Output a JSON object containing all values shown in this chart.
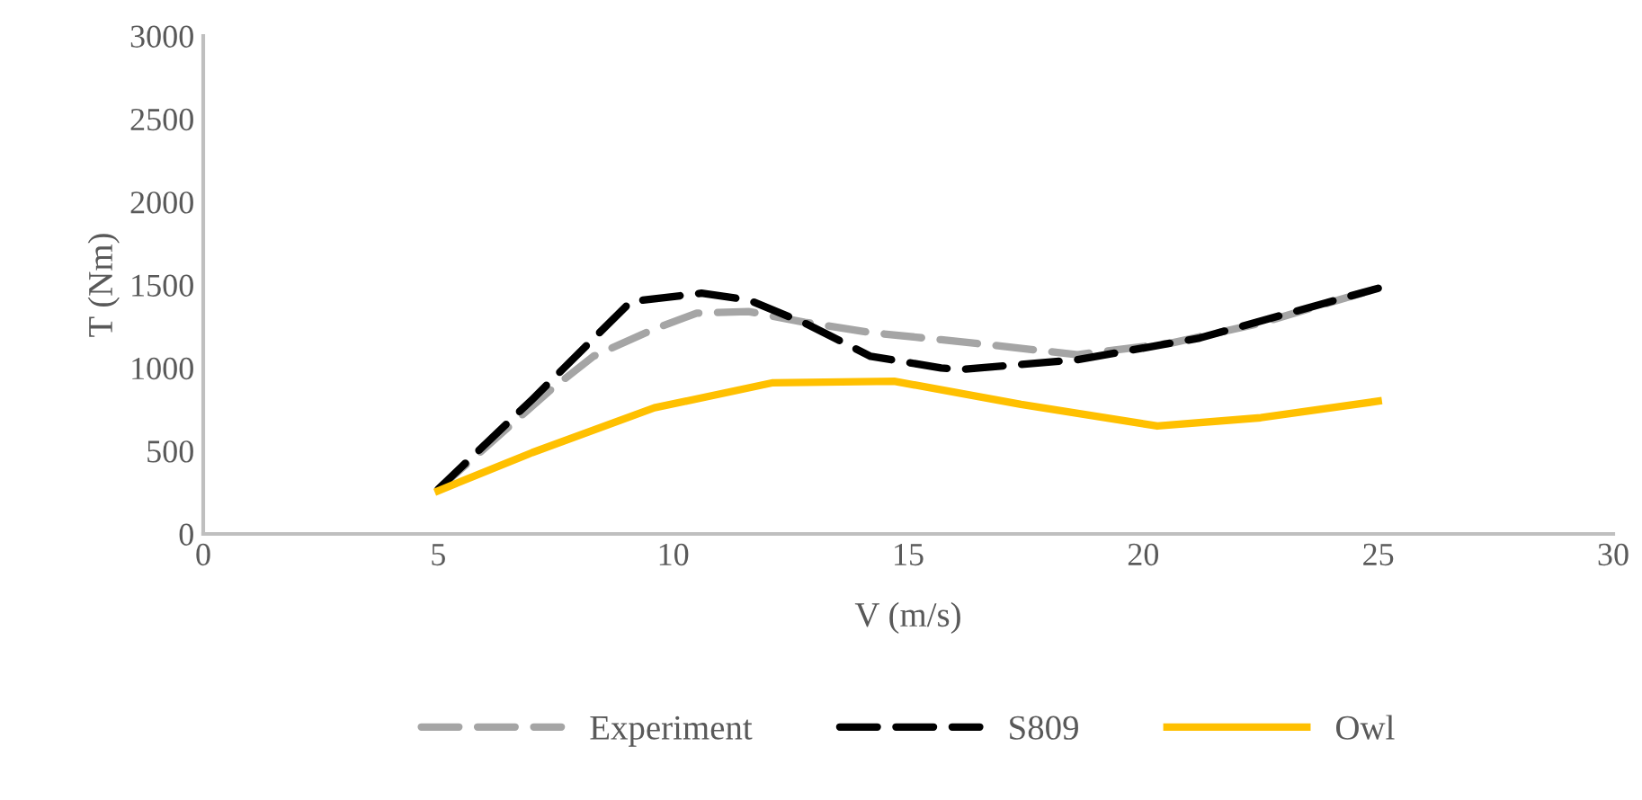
{
  "chart_data": {
    "type": "line",
    "xlabel": "V (m/s)",
    "ylabel": "T (Nm)",
    "xlim": [
      0,
      30
    ],
    "ylim": [
      0,
      3000
    ],
    "xticks": [
      0,
      5,
      10,
      15,
      20,
      25,
      30
    ],
    "yticks": [
      0,
      500,
      1000,
      1500,
      2000,
      2500,
      3000
    ],
    "grid": false,
    "legend": "bottom",
    "series": [
      {
        "name": "Experiment",
        "color": "#a5a5a5",
        "line_style": "dashed",
        "x": [
          5,
          7.4,
          8.3,
          9.6,
          10.5,
          11.6,
          12.8,
          14.2,
          15.7,
          16.7,
          18.6,
          20.6,
          22.5,
          25
        ],
        "values": [
          270,
          870,
          1070,
          1235,
          1330,
          1340,
          1275,
          1213,
          1170,
          1140,
          1080,
          1150,
          1270,
          1480
        ]
      },
      {
        "name": "S809",
        "color": "#000000",
        "line_style": "dashed",
        "x": [
          5,
          7,
          9.1,
          10.6,
          11.6,
          12.8,
          14.2,
          15.7,
          16.1,
          18.6,
          21.2,
          25
        ],
        "values": [
          270,
          810,
          1400,
          1450,
          1410,
          1270,
          1070,
          1000,
          990,
          1050,
          1180,
          1480
        ]
      },
      {
        "name": "Owl",
        "color": "#ffc000",
        "line_style": "solid",
        "x": [
          5,
          7,
          9.6,
          12.1,
          14.7,
          17.4,
          20.3,
          22.5,
          25
        ],
        "values": [
          260,
          490,
          760,
          910,
          920,
          780,
          650,
          700,
          800
        ]
      }
    ]
  }
}
